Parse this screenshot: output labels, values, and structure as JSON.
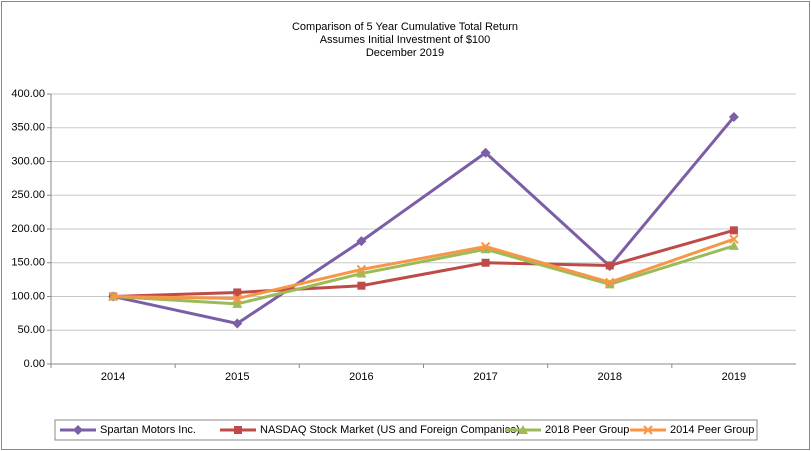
{
  "chart_data": {
    "type": "line",
    "title_lines": [
      "Comparison of 5 Year Cumulative Total Return",
      "Assumes Initial Investment of $100",
      "December 2019"
    ],
    "categories": [
      "2014",
      "2015",
      "2016",
      "2017",
      "2018",
      "2019"
    ],
    "series": [
      {
        "name": "Spartan Motors Inc.",
        "color": "#7b5ea7",
        "marker": "diamond",
        "values": [
          100,
          60,
          182,
          313,
          145,
          366
        ]
      },
      {
        "name": "NASDAQ Stock Market (US and Foreign Companies)",
        "color": "#be4b48",
        "marker": "square",
        "values": [
          100,
          106,
          116,
          150,
          146,
          198
        ]
      },
      {
        "name": "2018 Peer Group",
        "color": "#9bbb59",
        "marker": "triangle",
        "values": [
          100,
          89,
          134,
          170,
          118,
          175
        ]
      },
      {
        "name": "2014 Peer Group",
        "color": "#f79646",
        "marker": "x",
        "values": [
          100,
          97,
          140,
          174,
          121,
          185
        ]
      }
    ],
    "ylim": [
      0,
      400
    ],
    "yticks": [
      {
        "value": 0,
        "label": "0.00"
      },
      {
        "value": 50,
        "label": "50.00"
      },
      {
        "value": 100,
        "label": "100.00"
      },
      {
        "value": 150,
        "label": "150.00"
      },
      {
        "value": 200,
        "label": "200.00"
      },
      {
        "value": 250,
        "label": "250.00"
      },
      {
        "value": 300,
        "label": "300.00"
      },
      {
        "value": 350,
        "label": "350.00"
      },
      {
        "value": 400,
        "label": "400.00"
      }
    ],
    "grid": true,
    "legend": "bottom"
  }
}
